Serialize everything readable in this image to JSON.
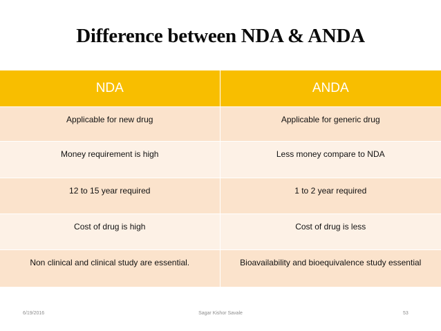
{
  "slide": {
    "title": "Difference between NDA & ANDA"
  },
  "table": {
    "headers": [
      "NDA",
      "ANDA"
    ],
    "rows": [
      [
        "Applicable for new drug",
        "Applicable for generic drug"
      ],
      [
        "Money requirement is high",
        "Less money compare to NDA"
      ],
      [
        "12 to 15 year required",
        "1 to 2 year required"
      ],
      [
        "Cost of  drug is high",
        "Cost of  drug is less"
      ],
      [
        "Non clinical and clinical study are essential.",
        "Bioavailability and bioequivalence study essential"
      ]
    ]
  },
  "footer": {
    "date": "6/19/2016",
    "author": "Sagar Kishor Savale",
    "page": "53"
  },
  "colors": {
    "header_bg": "#f8be00",
    "row_odd_bg": "#fbe3cc",
    "row_even_bg": "#fdf1e6"
  }
}
